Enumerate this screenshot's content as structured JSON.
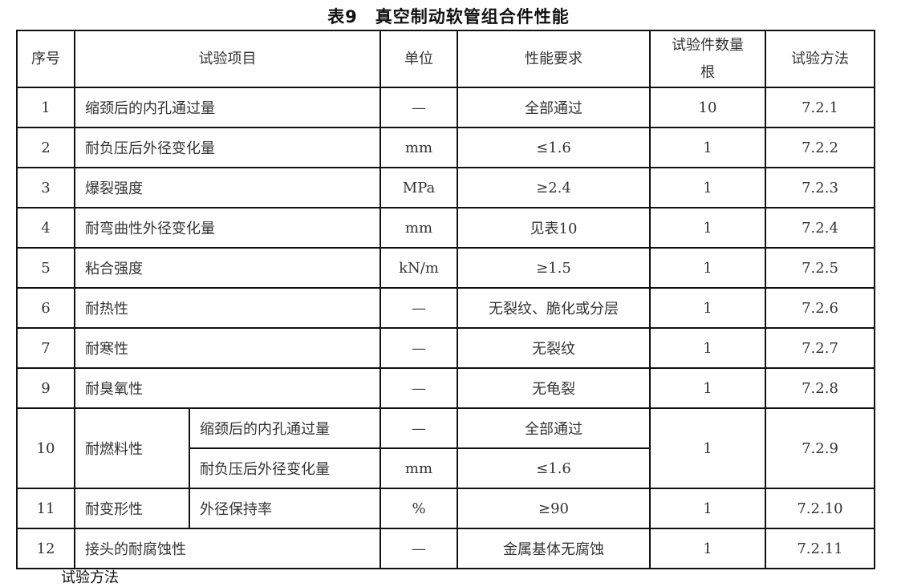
{
  "title": "表9　真空制动软管组合件性能",
  "headers": {
    "no": "序号",
    "item": "试验项目",
    "unit": "单位",
    "requirement": "性能要求",
    "count_line1": "试验件数量",
    "count_line2": "根",
    "method": "试验方法"
  },
  "rows": [
    {
      "no": "1",
      "item": "缩颈后的内孔通过量",
      "unit": "—",
      "requirement": "全部通过",
      "count": "10",
      "method": "7.2.1"
    },
    {
      "no": "2",
      "item": "耐负压后外径变化量",
      "unit": "mm",
      "requirement": "≤1.6",
      "count": "1",
      "method": "7.2.2"
    },
    {
      "no": "3",
      "item": "爆裂强度",
      "unit": "MPa",
      "requirement": "≥2.4",
      "count": "1",
      "method": "7.2.3"
    },
    {
      "no": "4",
      "item": "耐弯曲性外径变化量",
      "unit": "mm",
      "requirement": "见表10",
      "count": "1",
      "method": "7.2.4"
    },
    {
      "no": "5",
      "item": "粘合强度",
      "unit": "kN/m",
      "requirement": "≥1.5",
      "count": "1",
      "method": "7.2.5"
    },
    {
      "no": "6",
      "item": "耐热性",
      "unit": "—",
      "requirement": "无裂纹、脆化或分层",
      "count": "1",
      "method": "7.2.6"
    },
    {
      "no": "7",
      "item": "耐寒性",
      "unit": "—",
      "requirement": "无裂纹",
      "count": "1",
      "method": "7.2.7"
    },
    {
      "no": "9",
      "item": "耐臭氧性",
      "unit": "—",
      "requirement": "无龟裂",
      "count": "1",
      "method": "7.2.8"
    }
  ],
  "row10": {
    "no": "10",
    "item": "耐燃料性",
    "sub1": "缩颈后的内孔通过量",
    "unit1": "—",
    "req1": "全部通过",
    "sub2": "耐负压后外径变化量",
    "unit2": "mm",
    "req2": "≤1.6",
    "count": "1",
    "method": "7.2.9"
  },
  "row11": {
    "no": "11",
    "item": "耐变形性",
    "sub": "外径保持率",
    "unit": "%",
    "requirement": "≥90",
    "count": "1",
    "method": "7.2.10"
  },
  "row12": {
    "no": "12",
    "item": "接头的耐腐蚀性",
    "unit": "—",
    "requirement": "金属基体无腐蚀",
    "count": "1",
    "method": "7.2.11"
  },
  "footer_text": "试验方法"
}
